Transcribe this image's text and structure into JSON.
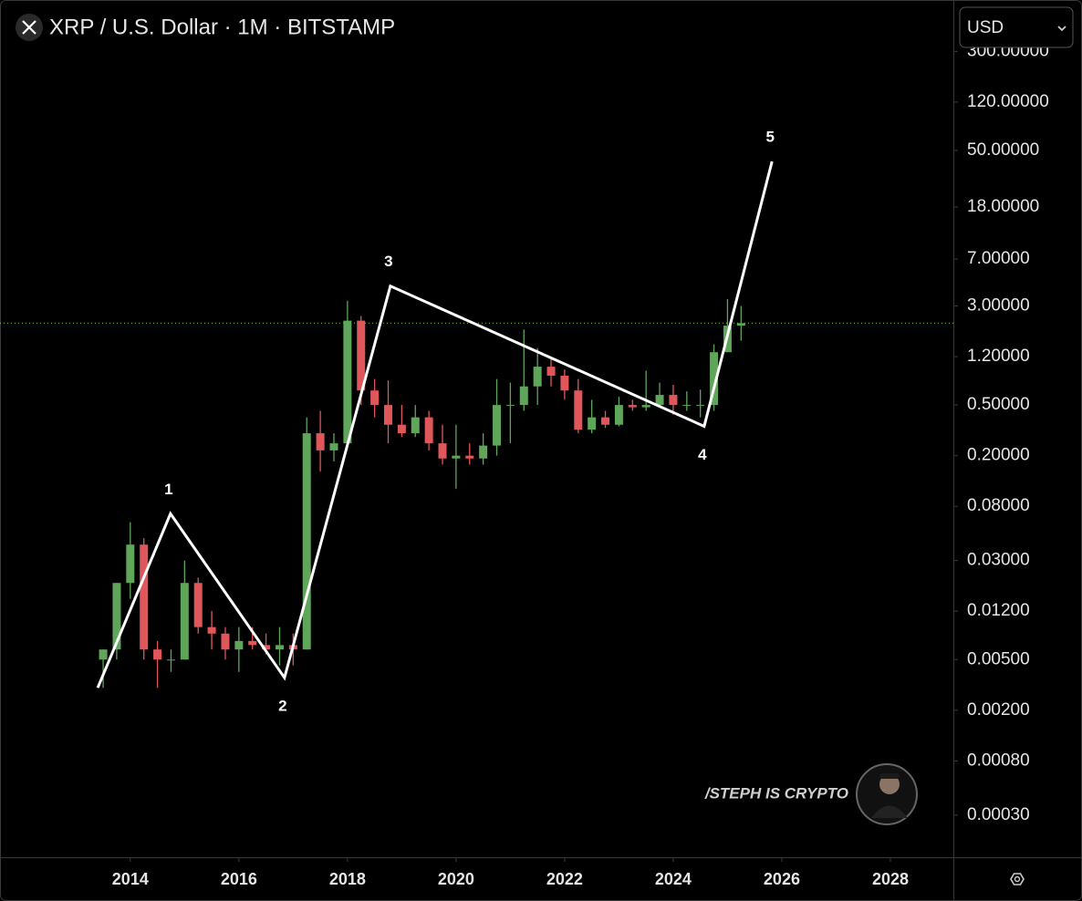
{
  "header": {
    "title": "XRP / U.S. Dollar · 1M · BITSTAMP",
    "currency": "USD"
  },
  "watermark": "/STEPH IS CRYPTO",
  "chart_data": {
    "type": "candlestick",
    "log_scale": true,
    "up_color": "#5fa55a",
    "down_color": "#e0575b",
    "x": [
      2013.5,
      2013.75,
      2014.0,
      2014.25,
      2014.5,
      2014.75,
      2015.0,
      2015.25,
      2015.5,
      2015.75,
      2016.0,
      2016.25,
      2016.5,
      2016.75,
      2017.0,
      2017.25,
      2017.5,
      2017.75,
      2018.0,
      2018.25,
      2018.5,
      2018.75,
      2019.0,
      2019.25,
      2019.5,
      2019.75,
      2020.0,
      2020.25,
      2020.5,
      2020.75,
      2021.0,
      2021.25,
      2021.5,
      2021.75,
      2022.0,
      2022.25,
      2022.5,
      2022.75,
      2023.0,
      2023.25,
      2023.5,
      2023.75,
      2024.0,
      2024.25,
      2024.5,
      2024.75,
      2025.0,
      2025.25
    ],
    "open": [
      0.005,
      0.006,
      0.02,
      0.04,
      0.006,
      0.005,
      0.005,
      0.02,
      0.009,
      0.008,
      0.006,
      0.007,
      0.0065,
      0.006,
      0.0065,
      0.006,
      0.3,
      0.22,
      0.25,
      2.3,
      0.65,
      0.5,
      0.35,
      0.3,
      0.4,
      0.25,
      0.19,
      0.2,
      0.19,
      0.24,
      0.5,
      0.5,
      0.7,
      1.0,
      0.85,
      0.65,
      0.32,
      0.4,
      0.35,
      0.5,
      0.48,
      0.5,
      0.6,
      0.5,
      0.5,
      0.5,
      1.3,
      2.1
    ],
    "high": [
      0.006,
      0.02,
      0.06,
      0.045,
      0.007,
      0.006,
      0.03,
      0.022,
      0.012,
      0.009,
      0.009,
      0.009,
      0.008,
      0.009,
      0.008,
      0.4,
      0.45,
      0.3,
      3.3,
      2.5,
      0.8,
      0.78,
      0.5,
      0.5,
      0.45,
      0.35,
      0.35,
      0.25,
      0.3,
      0.8,
      0.75,
      1.96,
      1.4,
      1.2,
      0.95,
      0.8,
      0.55,
      0.45,
      0.58,
      0.55,
      0.93,
      0.75,
      0.72,
      0.64,
      0.66,
      1.5,
      3.4,
      3.0
    ],
    "low": [
      0.003,
      0.005,
      0.015,
      0.005,
      0.003,
      0.004,
      0.005,
      0.008,
      0.006,
      0.005,
      0.004,
      0.006,
      0.0055,
      0.0045,
      0.0045,
      0.006,
      0.15,
      0.18,
      0.25,
      0.5,
      0.4,
      0.25,
      0.28,
      0.28,
      0.22,
      0.17,
      0.11,
      0.17,
      0.17,
      0.2,
      0.25,
      0.45,
      0.5,
      0.7,
      0.55,
      0.3,
      0.3,
      0.33,
      0.34,
      0.45,
      0.45,
      0.48,
      0.42,
      0.45,
      0.4,
      0.45,
      1.3,
      1.6
    ],
    "close": [
      0.006,
      0.02,
      0.04,
      0.006,
      0.005,
      0.005,
      0.02,
      0.009,
      0.008,
      0.006,
      0.007,
      0.0065,
      0.006,
      0.0065,
      0.006,
      0.3,
      0.22,
      0.25,
      2.3,
      0.65,
      0.5,
      0.35,
      0.3,
      0.4,
      0.25,
      0.19,
      0.2,
      0.19,
      0.24,
      0.5,
      0.5,
      0.7,
      1.0,
      0.85,
      0.65,
      0.32,
      0.4,
      0.35,
      0.5,
      0.48,
      0.5,
      0.6,
      0.5,
      0.5,
      0.5,
      1.3,
      2.1,
      2.2
    ],
    "xlim": [
      2011.6,
      2029.16
    ],
    "ylim": [
      0.00014,
      760
    ],
    "xticks": [
      2014,
      2016,
      2018,
      2020,
      2022,
      2024,
      2026,
      2028
    ],
    "yticks": [
      {
        "value": 300,
        "label": "300.00000"
      },
      {
        "value": 120,
        "label": "120.00000"
      },
      {
        "value": 50,
        "label": "50.00000"
      },
      {
        "value": 18,
        "label": "18.00000"
      },
      {
        "value": 7,
        "label": "7.00000"
      },
      {
        "value": 3,
        "label": "3.00000"
      },
      {
        "value": 1.2,
        "label": "1.20000"
      },
      {
        "value": 0.5,
        "label": "0.50000"
      },
      {
        "value": 0.2,
        "label": "0.20000"
      },
      {
        "value": 0.08,
        "label": "0.08000"
      },
      {
        "value": 0.03,
        "label": "0.03000"
      },
      {
        "value": 0.012,
        "label": "0.01200"
      },
      {
        "value": 0.005,
        "label": "0.00500"
      },
      {
        "value": 0.002,
        "label": "0.00200"
      },
      {
        "value": 0.0008,
        "label": "0.00080"
      },
      {
        "value": 0.0003,
        "label": "0.00030"
      }
    ],
    "price_line": 2.2,
    "price_line_color": "#8bc34a",
    "wave": {
      "x": [
        2013.4,
        2014.74,
        2016.84,
        2018.79,
        2024.57,
        2025.82
      ],
      "y": [
        0.003,
        0.07,
        0.0036,
        4.3,
        0.34,
        41
      ],
      "labels": [
        null,
        "1",
        "2",
        "3",
        "4",
        "5"
      ],
      "color": "#ffffff"
    }
  }
}
